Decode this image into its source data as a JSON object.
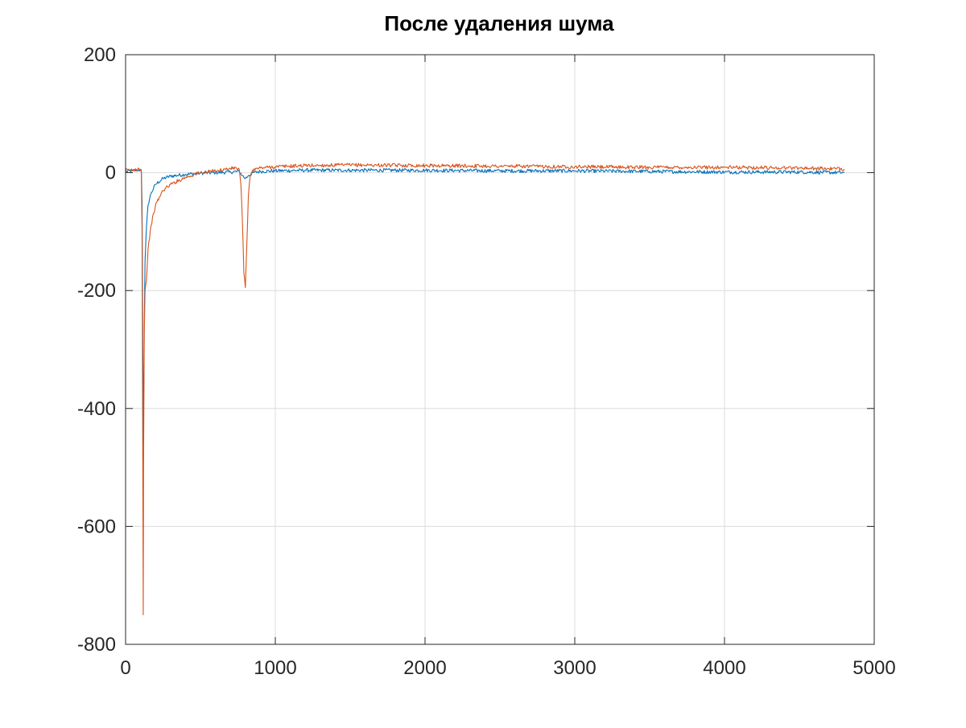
{
  "chart_data": {
    "type": "line",
    "title": "После удаления шума",
    "xlabel": "",
    "ylabel": "",
    "xlim": [
      0,
      5000
    ],
    "ylim": [
      -800,
      200
    ],
    "xticks": [
      0,
      1000,
      2000,
      3000,
      4000,
      5000
    ],
    "yticks": [
      200,
      0,
      -200,
      -400,
      -600,
      -800
    ],
    "xtick_labels": [
      "0",
      "1000",
      "2000",
      "3000",
      "4000",
      "5000"
    ],
    "ytick_labels": [
      "200",
      "0",
      "-200",
      "-400",
      "-600",
      "-800"
    ],
    "grid": true,
    "legend": "none",
    "series": [
      {
        "color": "#0072BD",
        "x": [
          0,
          50,
          90,
          105,
          110,
          115,
          118,
          120,
          125,
          130,
          140,
          150,
          170,
          200,
          250,
          300,
          400,
          500,
          600,
          700,
          760,
          780,
          800,
          820,
          850,
          900,
          1000,
          1200,
          1500,
          2000,
          2500,
          3000,
          3500,
          4000,
          4500,
          4800
        ],
        "y": [
          2,
          3,
          5,
          3,
          -50,
          -300,
          -460,
          -400,
          -250,
          -150,
          -90,
          -55,
          -35,
          -20,
          -10,
          -6,
          -3,
          -1,
          0,
          1,
          2,
          -5,
          -10,
          -5,
          0,
          2,
          3,
          4,
          4,
          4,
          3,
          3,
          2,
          1,
          1,
          0
        ]
      },
      {
        "color": "#D95319",
        "x": [
          0,
          50,
          90,
          105,
          110,
          115,
          118,
          120,
          125,
          130,
          140,
          150,
          170,
          200,
          250,
          300,
          400,
          500,
          600,
          700,
          740,
          760,
          770,
          780,
          790,
          800,
          810,
          820,
          830,
          850,
          900,
          1000,
          1200,
          1500,
          2000,
          2500,
          3000,
          3500,
          4000,
          4500,
          4800
        ],
        "y": [
          4,
          5,
          7,
          5,
          -100,
          -500,
          -750,
          -500,
          -270,
          -200,
          -180,
          -130,
          -90,
          -55,
          -30,
          -20,
          -8,
          0,
          3,
          7,
          8,
          5,
          -20,
          -80,
          -170,
          -195,
          -120,
          -40,
          -10,
          5,
          8,
          10,
          12,
          13,
          12,
          11,
          10,
          9,
          9,
          8,
          6
        ]
      }
    ]
  }
}
